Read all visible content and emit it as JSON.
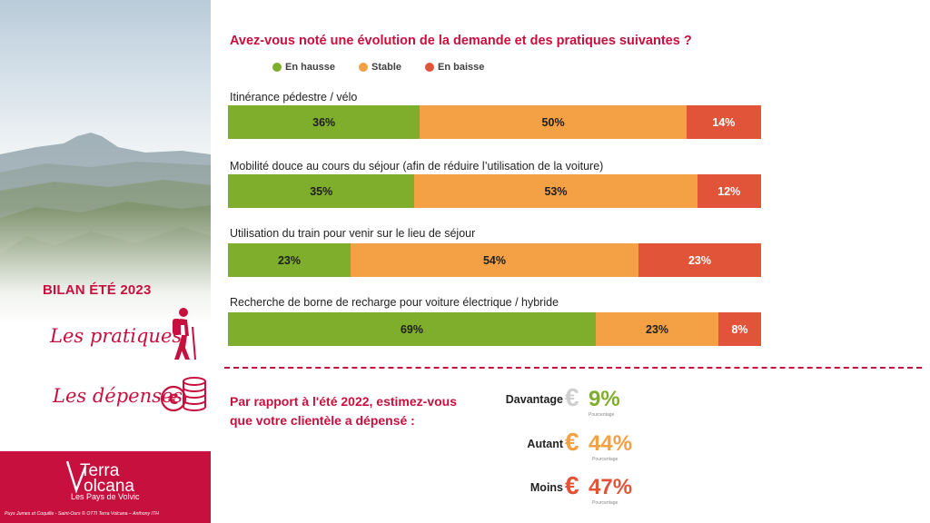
{
  "sidebar": {
    "bilan_title": "BILAN ÉTÉ 2023",
    "section_pratiques": "Les pratiques",
    "section_depenses": "Les dépenses",
    "brand_line1": "Terra",
    "brand_line2": "Volcana",
    "brand_subtitle": "Les Pays de Volvic",
    "photo_credit": "Puys Jumes et Coquille - Saint-Ours © OTTI Terra Volcana – Anthony ITH",
    "icons": [
      "hiker-icon",
      "euro-coins-icon"
    ],
    "brand_color": "#c8103f"
  },
  "chart_data": {
    "type": "bar",
    "orientation": "horizontal-stacked-100",
    "title": "Avez-vous noté une évolution de la demande et des pratiques suivantes ?",
    "legend_position": "top",
    "series": [
      {
        "name": "En hausse",
        "color": "#7fad2c",
        "values": [
          36,
          35,
          23,
          69
        ]
      },
      {
        "name": "Stable",
        "color": "#f4a044",
        "values": [
          50,
          53,
          54,
          23
        ]
      },
      {
        "name": "En baisse",
        "color": "#e2543a",
        "values": [
          14,
          12,
          23,
          8
        ]
      }
    ],
    "categories": [
      "Itinérance pédestre / vélo",
      "Mobilité douce au cours du séjour (afin de réduire l’utilisation de la voiture)",
      "Utilisation du train pour venir sur le lieu de séjour",
      "Recherche de borne de recharge pour voiture électrique / hybride"
    ],
    "unit": "%"
  },
  "spending": {
    "question": "Par rapport à l'été 2022, estimez-vous que votre clientèle a dépensé :",
    "items": [
      {
        "label": "Davantage",
        "value": "9%",
        "color": "#7fad2c",
        "euro_color": "#cfcfcf",
        "caption": "Pourcentage"
      },
      {
        "label": "Autant",
        "value": "44%",
        "color": "#f4a044",
        "euro_color": "#f4a044",
        "caption": "Pourcentage"
      },
      {
        "label": "Moins",
        "value": "47%",
        "color": "#e2543a",
        "euro_color": "#e2543a",
        "caption": "Pourcentage"
      }
    ]
  }
}
